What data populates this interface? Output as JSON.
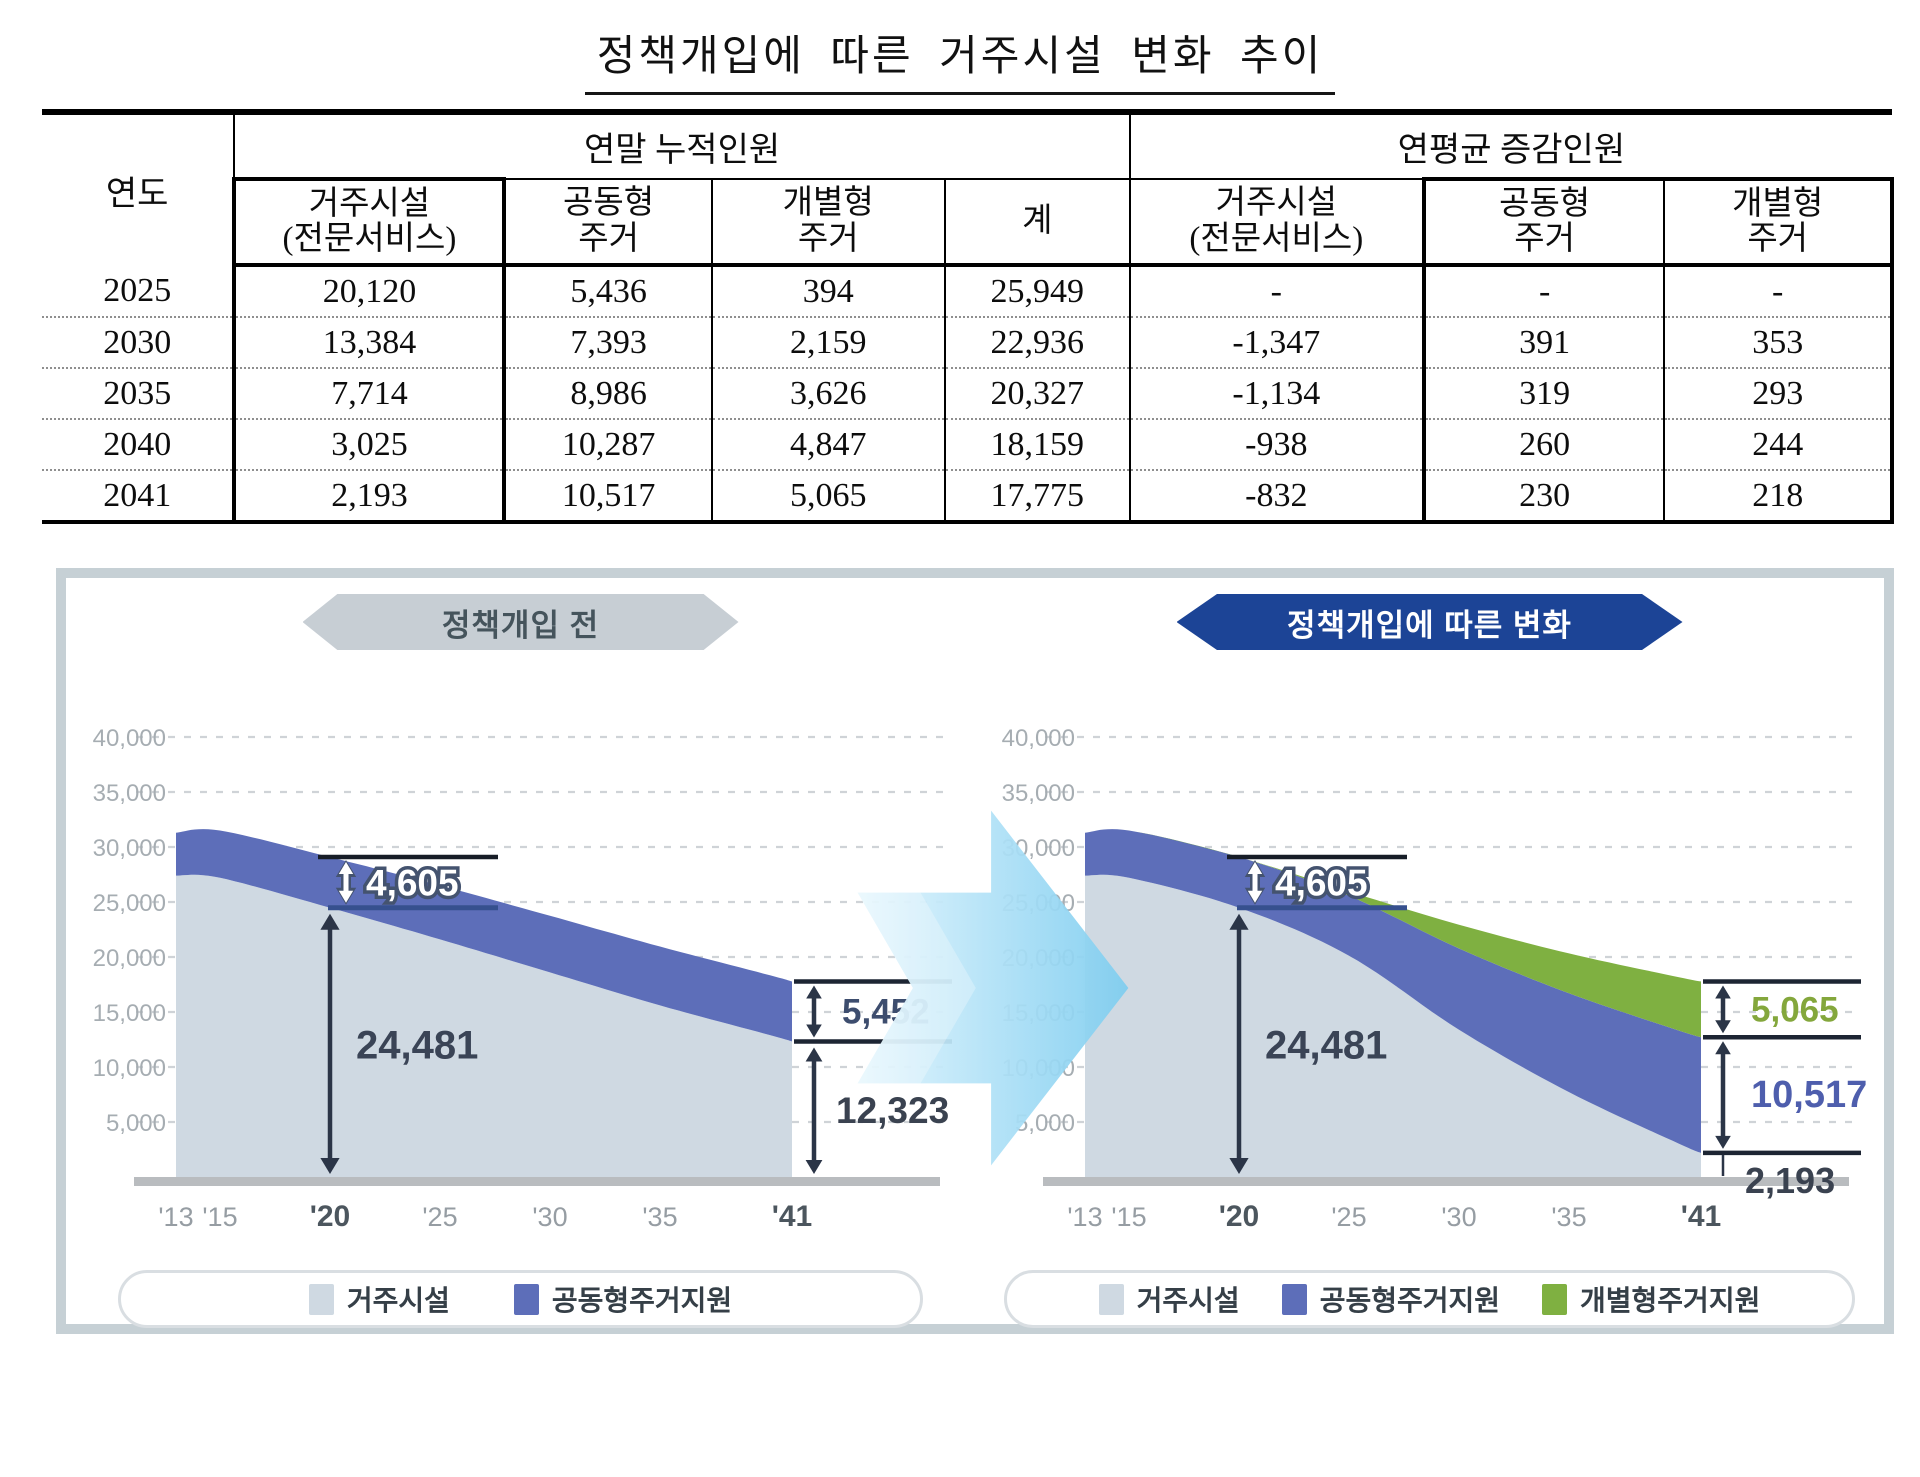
{
  "title": "정책개입에 따른 거주시설 변화 추이",
  "table": {
    "year_header": "연도",
    "group_headers": [
      "연말 누적인원",
      "연평균 증감인원"
    ],
    "sub_headers": [
      {
        "l1": "거주시설",
        "l2": "(전문서비스)"
      },
      {
        "l1": "공동형",
        "l2": "주거"
      },
      {
        "l1": "개별형",
        "l2": "주거"
      },
      {
        "l1": "계",
        "l2": ""
      },
      {
        "l1": "거주시설",
        "l2": "(전문서비스)"
      },
      {
        "l1": "공동형",
        "l2": "주거"
      },
      {
        "l1": "개별형",
        "l2": "주거"
      }
    ],
    "rows": [
      [
        "2025",
        "20,120",
        "5,436",
        "394",
        "25,949",
        "-",
        "-",
        "-"
      ],
      [
        "2030",
        "13,384",
        "7,393",
        "2,159",
        "22,936",
        "-1,347",
        "391",
        "353"
      ],
      [
        "2035",
        "7,714",
        "8,986",
        "3,626",
        "20,327",
        "-1,134",
        "319",
        "293"
      ],
      [
        "2040",
        "3,025",
        "10,287",
        "4,847",
        "18,159",
        "-938",
        "260",
        "244"
      ],
      [
        "2041",
        "2,193",
        "10,517",
        "5,065",
        "17,775",
        "-832",
        "230",
        "218"
      ]
    ]
  },
  "figure": {
    "panel_border": "#c6d0d5",
    "before": {
      "banner": "정책개입 전",
      "banner_bg": "#c7ced4",
      "banner_fg": "#45545c",
      "legend": [
        "거주시설",
        "공동형주거지원"
      ]
    },
    "after": {
      "banner": "정책개입에 따른 변화",
      "banner_bg": "#1c4496",
      "banner_fg": "#ffffff",
      "legend": [
        "거주시설",
        "공동형주거지원",
        "개별형주거지원"
      ]
    }
  },
  "chart_data": [
    {
      "type": "area",
      "stacked": true,
      "title": "정책개입 전",
      "x": [
        2013,
        2015,
        2020,
        2025,
        2030,
        2035,
        2040,
        2041
      ],
      "series": [
        {
          "name": "거주시설",
          "color": "#cfd9e2",
          "values": [
            27400,
            27200,
            24481,
            21600,
            18600,
            15600,
            12900,
            12323
          ]
        },
        {
          "name": "공동형주거지원",
          "color": "#5d6eb9",
          "values": [
            3900,
            4300,
            4605,
            4900,
            5150,
            5350,
            5440,
            5452
          ]
        }
      ],
      "ylim": [
        0,
        40000
      ],
      "yticks": [
        40000,
        35000,
        30000,
        25000,
        20000,
        15000,
        10000,
        5000
      ],
      "ytick_labels": [
        "40,000",
        "35,000",
        "30,000",
        "25,000",
        "20,000",
        "15,000",
        "10,000",
        "5,000"
      ],
      "xticks": [
        {
          "year": 2013,
          "label": "'13",
          "bold": false
        },
        {
          "year": 2015,
          "label": "'15",
          "bold": false
        },
        {
          "year": 2020,
          "label": "'20",
          "bold": true
        },
        {
          "year": 2025,
          "label": "'25",
          "bold": false
        },
        {
          "year": 2030,
          "label": "'30",
          "bold": false
        },
        {
          "year": 2035,
          "label": "'35",
          "bold": false
        },
        {
          "year": 2041,
          "label": "'41",
          "bold": true
        }
      ],
      "annotations": [
        {
          "kind": "band",
          "x": 2020,
          "y1": 24481,
          "y2": 29086,
          "label": "4,605"
        },
        {
          "kind": "drop",
          "x": 2020,
          "y1": 0,
          "y2": 24481,
          "label": "24,481",
          "color": "#3a4456"
        },
        {
          "kind": "edge-band",
          "y1": 12323,
          "y2": 17775,
          "label": "5,452",
          "color": "#3d4d6e",
          "caps": [
            17775,
            12323
          ]
        },
        {
          "kind": "edge-drop",
          "y1": 0,
          "y2": 12323,
          "label": "12,323",
          "color": "#3a4250"
        }
      ]
    },
    {
      "type": "area",
      "stacked": true,
      "title": "정책개입에 따른 변화",
      "x": [
        2013,
        2015,
        2020,
        2025,
        2030,
        2035,
        2040,
        2041
      ],
      "series": [
        {
          "name": "거주시설",
          "color": "#cfd9e2",
          "values": [
            27400,
            27200,
            24481,
            20120,
            13384,
            7714,
            3025,
            2193
          ]
        },
        {
          "name": "공동형주거지원",
          "color": "#5d6eb9",
          "values": [
            3900,
            4300,
            4605,
            5436,
            7393,
            8986,
            10287,
            10517
          ]
        },
        {
          "name": "개별형주거지원",
          "color": "#7fb041",
          "values": [
            0,
            0,
            0,
            394,
            2159,
            3626,
            4847,
            5065
          ]
        }
      ],
      "ylim": [
        0,
        40000
      ],
      "yticks": [
        40000,
        35000,
        30000,
        25000,
        20000,
        15000,
        10000,
        5000
      ],
      "ytick_labels": [
        "40,000",
        "35,000",
        "30,000",
        "25,000",
        "20,000",
        "15,000",
        "10,000",
        "5,000"
      ],
      "xticks": [
        {
          "year": 2013,
          "label": "'13",
          "bold": false
        },
        {
          "year": 2015,
          "label": "'15",
          "bold": false
        },
        {
          "year": 2020,
          "label": "'20",
          "bold": true
        },
        {
          "year": 2025,
          "label": "'25",
          "bold": false
        },
        {
          "year": 2030,
          "label": "'30",
          "bold": false
        },
        {
          "year": 2035,
          "label": "'35",
          "bold": false
        },
        {
          "year": 2041,
          "label": "'41",
          "bold": true
        }
      ],
      "annotations": [
        {
          "kind": "band",
          "x": 2020,
          "y1": 24481,
          "y2": 29086,
          "label": "4,605"
        },
        {
          "kind": "drop",
          "x": 2020,
          "y1": 0,
          "y2": 24481,
          "label": "24,481",
          "color": "#3a4456"
        },
        {
          "kind": "edge-band",
          "y1": 12710,
          "y2": 17775,
          "label": "5,065",
          "color": "#84a73c",
          "caps": [
            17775,
            12710
          ]
        },
        {
          "kind": "edge-band",
          "y1": 2193,
          "y2": 12710,
          "label": "10,517",
          "color": "#4e5ead",
          "caps": [
            2193
          ],
          "big": true
        },
        {
          "kind": "edge-base",
          "y": 2193,
          "label": "2,193",
          "color": "#3a4250"
        }
      ]
    }
  ]
}
